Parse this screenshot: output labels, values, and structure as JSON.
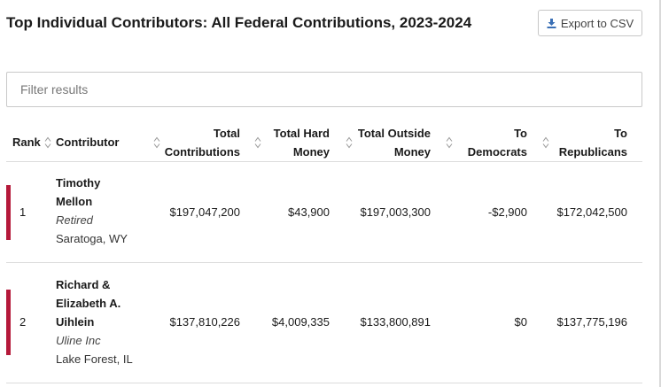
{
  "page": {
    "title": "Top Individual Contributors: All Federal Contributions, 2023-2024",
    "export_label": "Export to CSV",
    "filter_placeholder": "Filter results"
  },
  "colors": {
    "party_bar": "#b5193a"
  },
  "icons": {
    "export": "download-icon",
    "sort": "sort-arrows-icon"
  },
  "table": {
    "headers": {
      "rank": "Rank",
      "contributor": "Contributor",
      "total_l1": "Total",
      "total_l2": "Contributions",
      "hard_l1": "Total Hard",
      "hard_l2": "Money",
      "outside_l1": "Total Outside",
      "outside_l2": "Money",
      "dem_l1": "To",
      "dem_l2": "Democrats",
      "rep_l1": "To",
      "rep_l2": "Republicans"
    },
    "rows": [
      {
        "rank": "1",
        "name_lines": [
          "Timothy",
          "Mellon"
        ],
        "occupation": "Retired",
        "location": "Saratoga, WY",
        "total": "$197,047,200",
        "hard": "$43,900",
        "outside": "$197,003,300",
        "dem": "-$2,900",
        "rep": "$172,042,500"
      },
      {
        "rank": "2",
        "name_lines": [
          "Richard &",
          "Elizabeth A.",
          "Uihlein"
        ],
        "occupation": "Uline Inc",
        "location": "Lake Forest, IL",
        "total": "$137,810,226",
        "hard": "$4,009,335",
        "outside": "$133,800,891",
        "dem": "$0",
        "rep": "$137,775,196"
      }
    ]
  }
}
